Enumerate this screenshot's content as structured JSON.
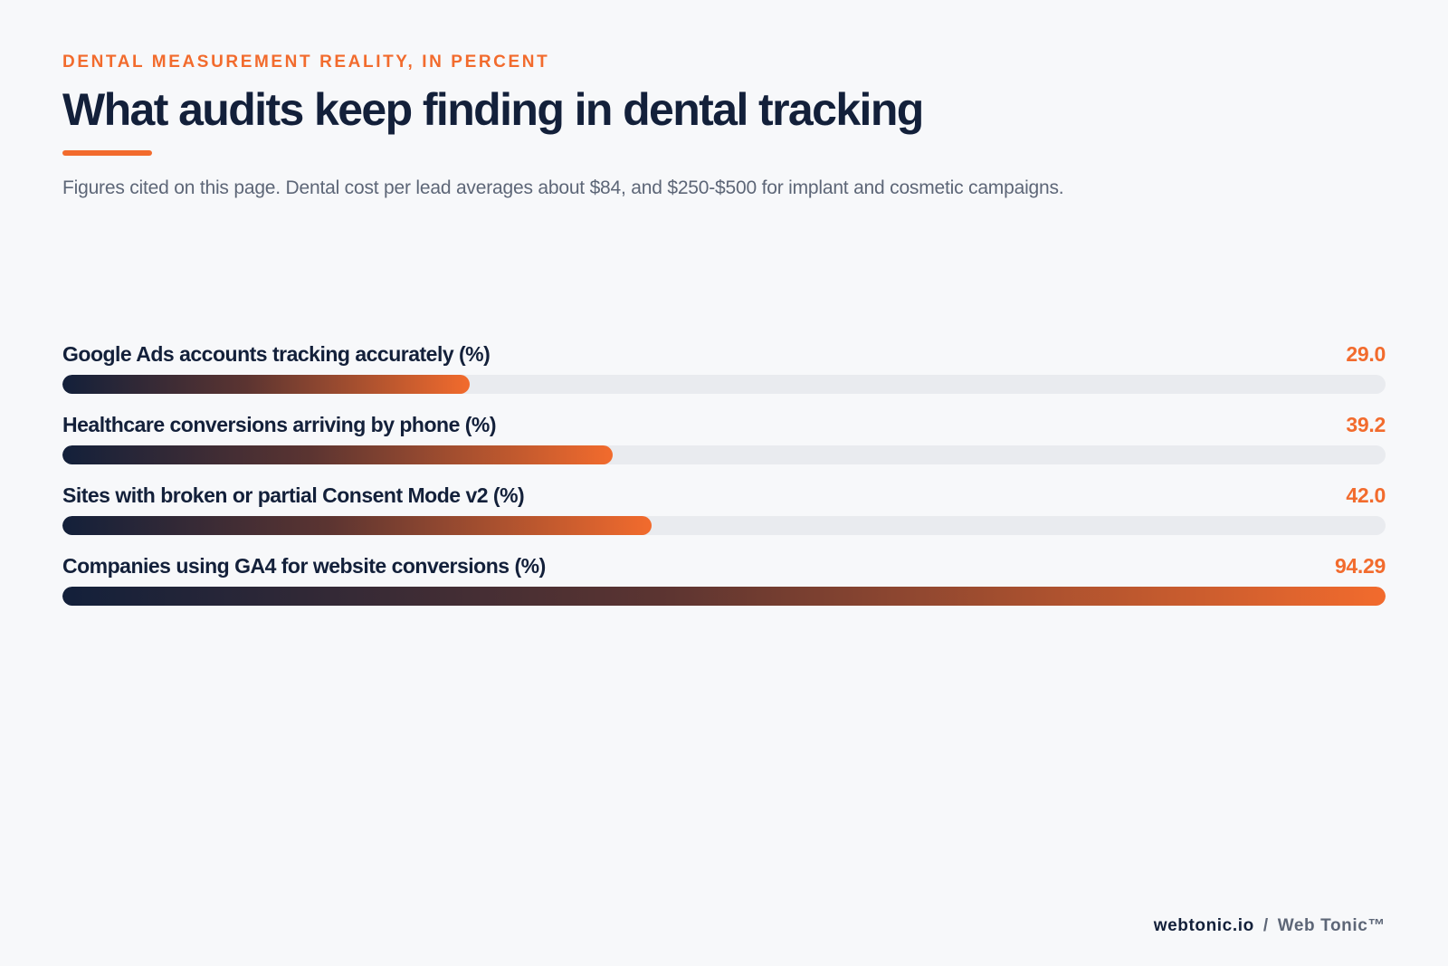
{
  "header": {
    "kicker": "DENTAL MEASUREMENT REALITY, IN PERCENT",
    "title": "What audits keep finding in dental tracking",
    "subtitle": "Figures cited on this page. Dental cost per lead averages about $84, and $250-$500 for implant and cosmetic campaigns."
  },
  "colors": {
    "accent": "#f26b2d",
    "navy": "#13203a",
    "track": "#e9ebef",
    "background": "#f7f8fa"
  },
  "chart_data": {
    "type": "bar",
    "orientation": "horizontal",
    "categories": [
      "Google Ads accounts tracking accurately (%)",
      "Healthcare conversions arriving by phone (%)",
      "Sites with broken or partial Consent Mode v2 (%)",
      "Companies using GA4 for website conversions (%)"
    ],
    "values": [
      29.0,
      39.2,
      42.0,
      94.29
    ],
    "value_labels": [
      "29.0",
      "39.2",
      "42.0",
      "94.29"
    ],
    "xlim": [
      0,
      94.29
    ],
    "grid": false
  },
  "footer": {
    "domain": "webtonic.io",
    "separator": "/",
    "brand": "Web Tonic™"
  }
}
